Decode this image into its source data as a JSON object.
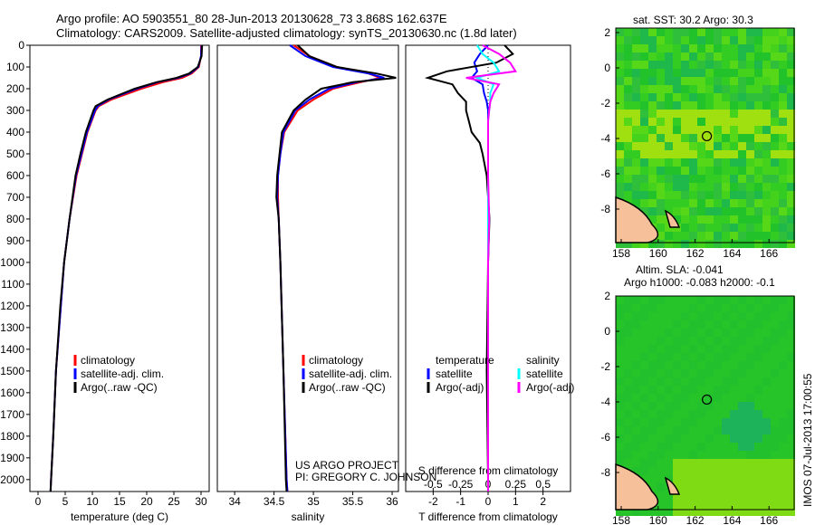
{
  "title_line1": "Argo profile: AO 5903551_80 28-Jun-2013 20130628_73 3.868S 162.637E",
  "title_line2": "Climatology: CARS2009. Satellite-adjusted climatology: synTS_20130630.nc (1.8d later)",
  "credit_line1": "US ARGO PROJECT",
  "credit_line2": "PI: GREGORY C. JOHNSON",
  "sst_title": "sat. SST: 30.2 Argo: 30.3",
  "sla_title1": "Altim. SLA: -0.041",
  "sla_title2": "Argo h1000: -0.083 h2000: -0.1",
  "stamp": "IMOS 07-Jul-2013 17:00:55",
  "colors": {
    "climatology": "#ff0000",
    "satellite": "#0000ff",
    "argo": "#000000",
    "sal_sat": "#00ffff",
    "sal_argo": "#ff00ff"
  },
  "chart_data": [
    {
      "type": "line",
      "xlabel": "temperature (deg C)",
      "ylabel": "",
      "xlim": [
        -1.5,
        31.5
      ],
      "ylim": [
        2055,
        0
      ],
      "xticks": [
        "0",
        "5",
        "10",
        "15",
        "20",
        "25",
        "30"
      ],
      "yticks": [
        "0",
        "100",
        "200",
        "300",
        "400",
        "500",
        "600",
        "700",
        "800",
        "900",
        "1000",
        "1100",
        "1200",
        "1300",
        "1400",
        "1500",
        "1600",
        "1700",
        "1800",
        "1900",
        "2000"
      ],
      "legend": [
        "climatology",
        "satellite-adj. clim.",
        "Argo(..raw -QC)"
      ],
      "depth": [
        0,
        50,
        100,
        130,
        150,
        170,
        200,
        250,
        280,
        300,
        400,
        500,
        600,
        800,
        1000,
        1200,
        1500,
        1800,
        2000,
        2055
      ],
      "series": [
        {
          "name": "climatology",
          "values": [
            30,
            30,
            29.6,
            28.3,
            26.5,
            23,
            19,
            13.5,
            11.2,
            10.6,
            9.1,
            8.1,
            7.1,
            5.8,
            4.8,
            4.2,
            3.3,
            2.8,
            2.4,
            2.3
          ]
        },
        {
          "name": "satellite-adj. clim.",
          "values": [
            30.1,
            30,
            29.5,
            28,
            25.8,
            22,
            18.2,
            13,
            11,
            10.5,
            9,
            8,
            7,
            5.8,
            4.8,
            4.2,
            3.3,
            2.8,
            2.4,
            2.3
          ]
        },
        {
          "name": "Argo(..raw -QC)",
          "values": [
            30.2,
            30.1,
            29.4,
            27.8,
            25.5,
            21.8,
            17.8,
            12.8,
            10.6,
            10.2,
            8.8,
            7.8,
            6.9,
            5.8,
            4.8,
            4.1,
            3.3,
            2.8,
            2.4,
            2.3
          ]
        }
      ]
    },
    {
      "type": "line",
      "xlabel": "salinity",
      "xlim": [
        33.78,
        36.08
      ],
      "ylim": [
        2055,
        0
      ],
      "xticks": [
        "34",
        "34.5",
        "35",
        "35.5",
        "36"
      ],
      "legend": [
        "climatology",
        "satellite-adj. clim.",
        "Argo(..raw -QC)"
      ],
      "depth": [
        0,
        50,
        100,
        130,
        150,
        170,
        200,
        250,
        300,
        400,
        500,
        600,
        700,
        800,
        1000,
        1500,
        2000,
        2055
      ],
      "series": [
        {
          "name": "climatology",
          "values": [
            34.75,
            34.95,
            35.3,
            35.7,
            35.85,
            35.6,
            35.25,
            35.0,
            34.8,
            34.63,
            34.58,
            34.55,
            34.55,
            34.56,
            34.58,
            34.62,
            34.66,
            34.67
          ]
        },
        {
          "name": "satellite-adj. clim.",
          "values": [
            34.7,
            34.9,
            35.25,
            35.7,
            35.9,
            35.55,
            35.2,
            34.95,
            34.77,
            34.62,
            34.58,
            34.55,
            34.54,
            34.56,
            34.58,
            34.62,
            34.66,
            34.67
          ]
        },
        {
          "name": "Argo(..raw -QC)",
          "values": [
            34.8,
            34.95,
            35.3,
            35.8,
            36.05,
            35.5,
            35.1,
            34.9,
            34.75,
            34.6,
            34.57,
            34.54,
            34.53,
            34.56,
            34.58,
            34.62,
            34.65,
            34.66
          ]
        }
      ]
    },
    {
      "type": "line",
      "xlabel": "T difference from climatology",
      "x2label": "S difference from climatology",
      "xlim": [
        -3,
        3
      ],
      "x2lim": [
        -0.75,
        0.75
      ],
      "ylim": [
        2055,
        0
      ],
      "xticks": [
        "-2",
        "-1",
        "0",
        "1",
        "2"
      ],
      "x2ticks": [
        "-0.5",
        "-0.25",
        "0",
        "0.25",
        "0.5"
      ],
      "legend_t": [
        "temperature",
        "satellite",
        "Argo(-adj)"
      ],
      "legend_s": [
        "salinity",
        "satellite",
        "Argo(-adj)"
      ],
      "depth": [
        0,
        40,
        80,
        120,
        150,
        180,
        220,
        260,
        300,
        350,
        400,
        450,
        500,
        600,
        800,
        1000,
        1500,
        2000,
        2055
      ],
      "series": [
        {
          "name": "T satellite",
          "values": [
            0,
            -0.3,
            -0.5,
            -0.4,
            -0.6,
            -0.2,
            -0.15,
            -0.05,
            0,
            0,
            0,
            0,
            0,
            0,
            0,
            0,
            0,
            0,
            0
          ]
        },
        {
          "name": "T Argo(-adj)",
          "values": [
            0.6,
            0.9,
            0.3,
            -1.5,
            -2.2,
            -1.3,
            -1.1,
            -0.8,
            -0.8,
            -0.7,
            -0.6,
            -0.3,
            -0.2,
            -0.05,
            0.05,
            0,
            -0.05,
            0,
            0
          ]
        },
        {
          "name": "S satellite",
          "values": [
            -0.1,
            -0.05,
            0.05,
            0.1,
            -0.1,
            0.05,
            0.02,
            0.02,
            0.01,
            0,
            0,
            0,
            0,
            0,
            0,
            0,
            0,
            0,
            0
          ]
        },
        {
          "name": "S Argo(-adj)",
          "values": [
            -0.05,
            0.1,
            0.2,
            0.25,
            -0.2,
            0.1,
            0.05,
            0.02,
            0.01,
            0,
            0,
            0,
            0,
            0,
            0.01,
            0,
            0,
            0,
            0
          ]
        }
      ]
    },
    {
      "type": "heatmap",
      "title": "sat. SST: 30.2 Argo: 30.3",
      "xticks": [
        "158",
        "160",
        "162",
        "164",
        "166"
      ],
      "yticks": [
        "2",
        "0",
        "-2",
        "-4",
        "-6",
        "-8"
      ],
      "marker": {
        "lon": 162.637,
        "lat": -3.868
      }
    },
    {
      "type": "heatmap",
      "title": "Altim. SLA: -0.041",
      "xticks": [
        "158",
        "160",
        "162",
        "164",
        "166"
      ],
      "yticks": [
        "2",
        "0",
        "-2",
        "-4",
        "-6",
        "-8"
      ],
      "marker": {
        "lon": 162.637,
        "lat": -3.868
      }
    }
  ]
}
